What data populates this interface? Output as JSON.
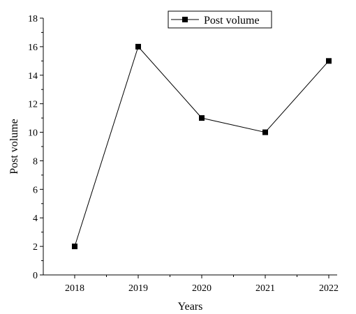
{
  "chart_data": {
    "type": "line",
    "title": "",
    "xlabel": "Years",
    "ylabel": "Post volume",
    "categories": [
      "2018",
      "2019",
      "2020",
      "2021",
      "2022"
    ],
    "ylim": [
      0,
      18
    ],
    "yticks": [
      0,
      2,
      4,
      6,
      8,
      10,
      12,
      14,
      16,
      18
    ],
    "grid": false,
    "legend_position": "top-right",
    "series": [
      {
        "name": "Post volume",
        "values": [
          2,
          16,
          11,
          10,
          15
        ],
        "color": "#000000",
        "marker": "square"
      }
    ]
  }
}
